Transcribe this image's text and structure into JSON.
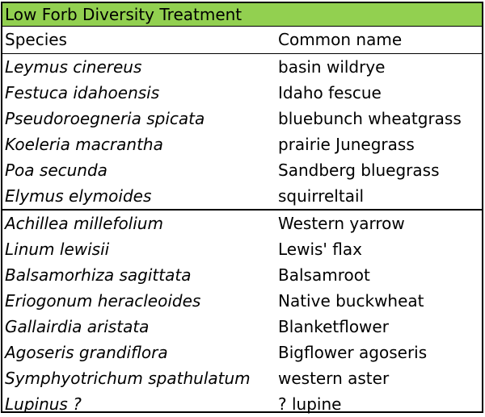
{
  "title": "Low Forb Diversity Treatment",
  "headers": {
    "species": "Species",
    "common": "Common name"
  },
  "grasses": [
    {
      "species": "Leymus cinereus",
      "common": "basin wildrye"
    },
    {
      "species": "Festuca idahoensis",
      "common": "Idaho fescue"
    },
    {
      "species": "Pseudoroegneria spicata",
      "common": "bluebunch wheatgrass"
    },
    {
      "species": "Koeleria macrantha",
      "common": "prairie Junegrass"
    },
    {
      "species": "Poa secunda",
      "common": "Sandberg bluegrass"
    },
    {
      "species": "Elymus elymoides",
      "common": "squirreltail"
    }
  ],
  "forbs": [
    {
      "species": "Achillea millefolium",
      "common": "Western yarrow"
    },
    {
      "species": "Linum lewisii",
      "common": "Lewis' flax"
    },
    {
      "species": "Balsamorhiza sagittata",
      "common": "Balsamroot"
    },
    {
      "species": "Eriogonum heracleoides",
      "common": "Native buckwheat"
    },
    {
      "species": "Gallairdia aristata",
      "common": "Blanketflower"
    },
    {
      "species": "Agoseris grandiflora",
      "common": "Bigflower agoseris"
    },
    {
      "species": "Symphyotrichum spathulatum",
      "common": "western aster"
    },
    {
      "species": "Lupinus ?",
      "common": "? lupine"
    }
  ],
  "colors": {
    "title_bg": "#92d050",
    "border": "#000000"
  }
}
